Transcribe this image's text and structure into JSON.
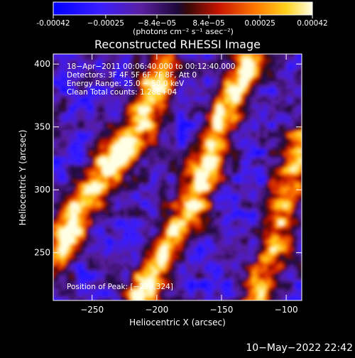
{
  "chart_data": {
    "type": "heatmap",
    "title": "Reconstructed RHESSI Image",
    "xlabel": "Heliocentric X (arcsec)",
    "ylabel": "Heliocentric Y (arcsec)",
    "xlim": [
      -280,
      -88
    ],
    "ylim": [
      212,
      408
    ],
    "x_ticks": [
      -250,
      -200,
      -150,
      -100
    ],
    "y_ticks": [
      250,
      300,
      350,
      400
    ],
    "x_tick_labels": [
      "−250",
      "−200",
      "−150",
      "−100"
    ],
    "y_tick_labels": [
      "250",
      "300",
      "350",
      "400"
    ],
    "colorbar": {
      "ticks": [
        "-0.00042",
        "−0.00025",
        "−8.4e−05",
        "8.4e−05",
        "0.00025",
        "0.00042"
      ],
      "tick_values": [
        -0.00042,
        -0.00025,
        -8.4e-05,
        8.4e-05,
        0.00025,
        0.00042
      ],
      "range": [
        -0.00042,
        0.00042
      ],
      "unit": "(photons cm⁻² s⁻¹ asec⁻²)"
    },
    "annotations": [
      "18−Apr−2011 00:06:40.000 to 00:12:40.000",
      "Detectors: 3F 4F 5F 6F 7F 8F, Att 0",
      "Energy Range: 25.0 − 50.0 keV",
      "Clean     Total counts: 1.28E+04"
    ],
    "peak_label": "Position of Peak: [−229,324]",
    "peak": [
      -229,
      324
    ],
    "bright_bands": [
      {
        "name": "left",
        "points": [
          [
            -280,
            245
          ],
          [
            -260,
            285
          ],
          [
            -230,
            330
          ],
          [
            -215,
            348
          ],
          [
            -195,
            400
          ]
        ]
      },
      {
        "name": "center",
        "points": [
          [
            -215,
            212
          ],
          [
            -195,
            250
          ],
          [
            -170,
            295
          ],
          [
            -160,
            325
          ],
          [
            -150,
            360
          ],
          [
            -130,
            400
          ]
        ]
      },
      {
        "name": "right",
        "points": [
          [
            -125,
            212
          ],
          [
            -110,
            255
          ],
          [
            -100,
            300
          ],
          [
            -88,
            340
          ]
        ]
      }
    ]
  },
  "footer": {
    "timestamp": "10−May−2022 22:42"
  },
  "colors": {
    "background": "#000000",
    "axes": "#ffffff"
  }
}
